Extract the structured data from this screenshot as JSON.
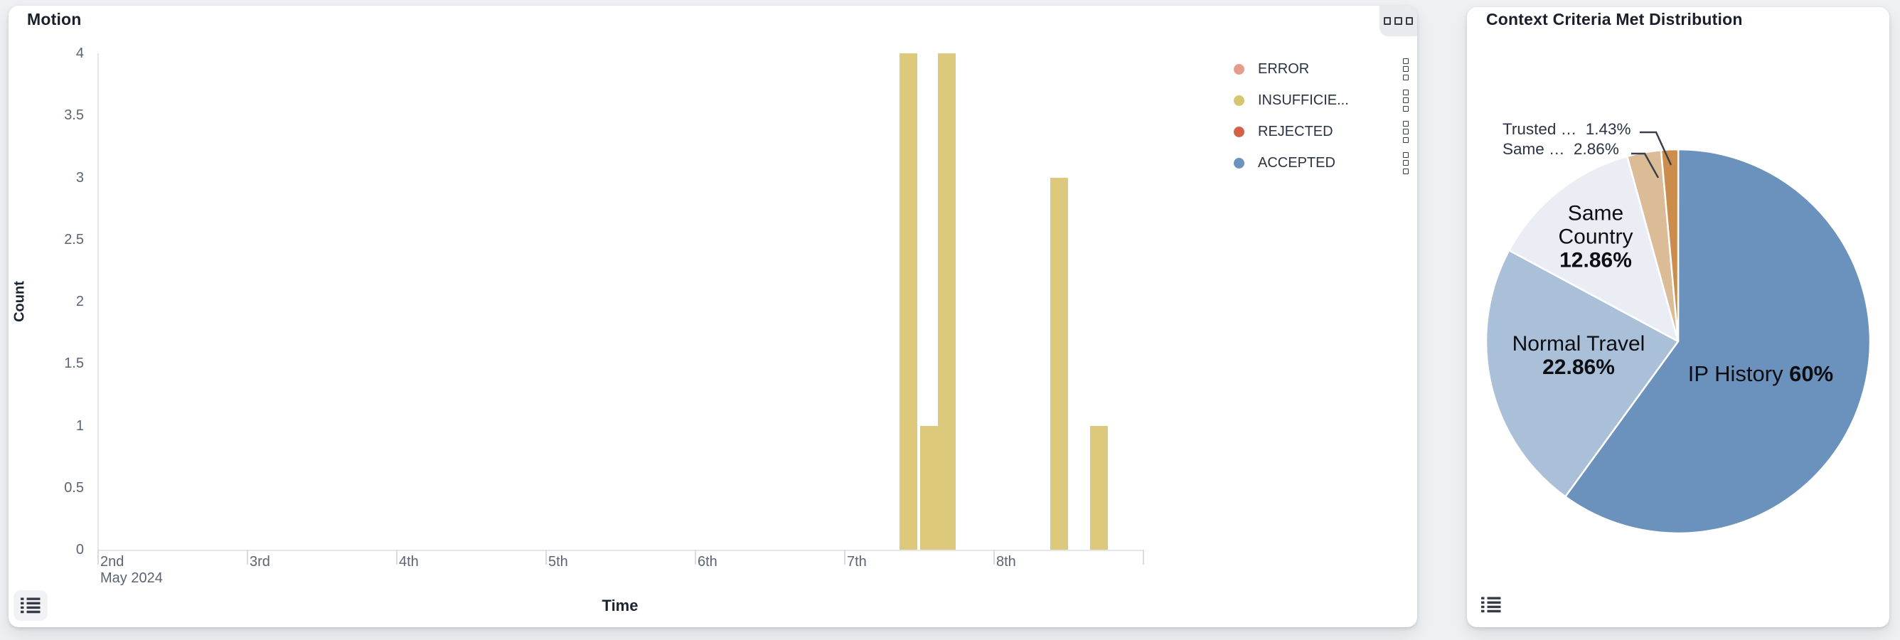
{
  "page": {
    "background": "#eef0f3",
    "card_background": "#ffffff"
  },
  "motion_panel": {
    "title": "Motion",
    "x_axis_title": "Time",
    "y_axis_title": "Count",
    "options_button_icon": "three-squares-icon",
    "legend_toggle_icon": "list-icon",
    "legend": [
      {
        "label": "ERROR",
        "color": "#e49c8d"
      },
      {
        "label": "INSUFFICIE...",
        "color": "#d6c76e"
      },
      {
        "label": "REJECTED",
        "color": "#d4604a"
      },
      {
        "label": "ACCEPTED",
        "color": "#6b93c0"
      }
    ]
  },
  "pie_panel": {
    "title": "Context Criteria Met Distribution",
    "legend_toggle_icon": "list-icon",
    "callouts": [
      {
        "label": "Trusted …",
        "percent": "1.43%"
      },
      {
        "label": "Same …",
        "percent": "2.86%"
      }
    ]
  },
  "chart_data": [
    {
      "type": "bar",
      "title": "Motion",
      "xlabel": "Time",
      "ylabel": "Count",
      "ylim": [
        0,
        4
      ],
      "yticks": [
        "0",
        "0.5",
        "1",
        "1.5",
        "2",
        "2.5",
        "3",
        "3.5",
        "4"
      ],
      "xticks": [
        {
          "label": "2nd",
          "sublabel": "May 2024"
        },
        {
          "label": "3rd"
        },
        {
          "label": "4th"
        },
        {
          "label": "5th"
        },
        {
          "label": "6th"
        },
        {
          "label": "7th"
        },
        {
          "label": "8th"
        },
        {
          "label": ""
        }
      ],
      "grid": false,
      "legend_position": "right",
      "visible_series": "INSUFFICIE...",
      "bar_color": "#dcc97c",
      "bar_width_axis_percent": 1.7,
      "bars": [
        {
          "x_axis_percent": 76.6,
          "count": 4
        },
        {
          "x_axis_percent": 78.6,
          "count": 1
        },
        {
          "x_axis_percent": 80.3,
          "count": 4
        },
        {
          "x_axis_percent": 91.0,
          "count": 3
        },
        {
          "x_axis_percent": 94.8,
          "count": 1
        }
      ]
    },
    {
      "type": "pie",
      "title": "Context Criteria Met Distribution",
      "direction": "clockwise",
      "start_angle": "12-oclock",
      "slices": [
        {
          "label": "IP History",
          "percent": 60,
          "percent_display": "60%",
          "color": "#6b91bd",
          "label_placement": "inside-inline"
        },
        {
          "label": "Normal Travel",
          "percent": 22.86,
          "percent_display": "22.86%",
          "color": "#aabfd8",
          "label_placement": "inside-stacked",
          "label_lines": [
            "Normal Travel"
          ]
        },
        {
          "label": "Same Country",
          "percent": 12.86,
          "percent_display": "12.86%",
          "color": "#eaedf4",
          "label_placement": "inside-stacked",
          "label_lines": [
            "Same",
            "Country"
          ]
        },
        {
          "label": "Same …",
          "percent": 2.86,
          "percent_display": "2.86%",
          "color": "#dcbc97",
          "label_placement": "callout"
        },
        {
          "label": "Trusted …",
          "percent": 1.43,
          "percent_display": "1.43%",
          "color": "#cc8c4c",
          "label_placement": "callout"
        }
      ]
    }
  ]
}
